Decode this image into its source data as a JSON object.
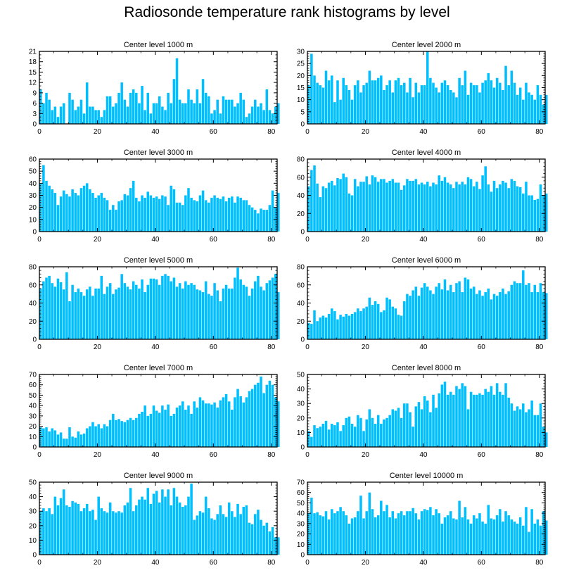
{
  "title": "Radiosonde temperature rank histograms by level",
  "bar_color": "#00BFFF",
  "axis_color": "#000000",
  "chart_data": [
    {
      "type": "bar",
      "title": "Center level 1000 m",
      "xlim": [
        0,
        82
      ],
      "ylim": [
        0,
        21
      ],
      "xticks": [
        0,
        20,
        40,
        60,
        80
      ],
      "yticks": [
        0,
        3,
        6,
        9,
        12,
        15,
        18,
        21
      ],
      "values": [
        10,
        6,
        9,
        7,
        4,
        5,
        2,
        5,
        6,
        0,
        9,
        7,
        4,
        5,
        7,
        3,
        12,
        5,
        5,
        4,
        4,
        2,
        4,
        8,
        8,
        5,
        6,
        9,
        12,
        7,
        5,
        9,
        10,
        9,
        6,
        11,
        4,
        9,
        3,
        6,
        6,
        8,
        5,
        4,
        9,
        6,
        13,
        19,
        7,
        6,
        6,
        10,
        7,
        6,
        10,
        6,
        13,
        9,
        8,
        3,
        4,
        7,
        3,
        8,
        7,
        7,
        7,
        5,
        6,
        9,
        7,
        2,
        3,
        5,
        7,
        5,
        6,
        4,
        10,
        4,
        3,
        5,
        6
      ]
    },
    {
      "type": "bar",
      "title": "Center level 2000 m",
      "xlim": [
        0,
        82
      ],
      "ylim": [
        0,
        30
      ],
      "xticks": [
        0,
        20,
        40,
        60,
        80
      ],
      "yticks": [
        0,
        5,
        10,
        15,
        20,
        25,
        30
      ],
      "values": [
        16,
        29,
        20,
        17,
        16,
        15,
        22,
        18,
        20,
        9,
        18,
        10,
        19,
        16,
        14,
        10,
        16,
        18,
        13,
        16,
        17,
        22,
        18,
        18,
        19,
        20,
        14,
        16,
        18,
        13,
        18,
        19,
        16,
        17,
        13,
        19,
        11,
        17,
        13,
        16,
        16,
        30,
        19,
        17,
        15,
        13,
        17,
        18,
        16,
        14,
        13,
        11,
        19,
        16,
        22,
        12,
        17,
        16,
        16,
        13,
        17,
        18,
        21,
        18,
        15,
        19,
        17,
        14,
        24,
        16,
        22,
        17,
        12,
        15,
        10,
        17,
        13,
        12,
        10,
        16,
        12,
        8,
        12
      ]
    },
    {
      "type": "bar",
      "title": "Center level 3000 m",
      "xlim": [
        0,
        82
      ],
      "ylim": [
        0,
        60
      ],
      "xticks": [
        0,
        20,
        40,
        60,
        80
      ],
      "yticks": [
        0,
        10,
        20,
        30,
        40,
        50,
        60
      ],
      "values": [
        40,
        55,
        42,
        38,
        35,
        32,
        22,
        29,
        34,
        31,
        29,
        35,
        32,
        30,
        36,
        38,
        40,
        35,
        32,
        28,
        30,
        32,
        28,
        26,
        18,
        22,
        18,
        25,
        26,
        31,
        30,
        36,
        42,
        28,
        25,
        30,
        28,
        33,
        30,
        28,
        29,
        27,
        30,
        29,
        22,
        38,
        35,
        24,
        24,
        22,
        30,
        36,
        28,
        26,
        25,
        30,
        34,
        26,
        24,
        28,
        30,
        28,
        27,
        29,
        25,
        28,
        29,
        24,
        29,
        28,
        26,
        26,
        22,
        20,
        18,
        15,
        19,
        18,
        18,
        22,
        34,
        20,
        32
      ]
    },
    {
      "type": "bar",
      "title": "Center level 4000 m",
      "xlim": [
        0,
        82
      ],
      "ylim": [
        0,
        80
      ],
      "xticks": [
        0,
        20,
        40,
        60,
        80
      ],
      "yticks": [
        0,
        20,
        40,
        60,
        80
      ],
      "values": [
        50,
        68,
        73,
        53,
        38,
        50,
        48,
        54,
        56,
        51,
        59,
        58,
        64,
        60,
        42,
        40,
        58,
        50,
        55,
        55,
        61,
        52,
        62,
        60,
        55,
        58,
        58,
        54,
        56,
        58,
        54,
        54,
        46,
        51,
        58,
        56,
        56,
        58,
        52,
        54,
        52,
        55,
        50,
        54,
        52,
        62,
        56,
        60,
        54,
        52,
        48,
        55,
        52,
        55,
        52,
        60,
        58,
        50,
        55,
        47,
        62,
        72,
        52,
        44,
        56,
        48,
        52,
        56,
        54,
        48,
        58,
        56,
        50,
        49,
        42,
        55,
        40,
        40,
        35,
        36,
        52,
        40,
        42
      ]
    },
    {
      "type": "bar",
      "title": "Center level 5000 m",
      "xlim": [
        0,
        82
      ],
      "ylim": [
        0,
        80
      ],
      "xticks": [
        0,
        20,
        40,
        60,
        80
      ],
      "yticks": [
        0,
        20,
        40,
        60,
        80
      ],
      "values": [
        56,
        64,
        68,
        70,
        62,
        58,
        67,
        63,
        55,
        74,
        42,
        60,
        52,
        56,
        52,
        48,
        55,
        58,
        48,
        56,
        56,
        70,
        50,
        58,
        62,
        50,
        55,
        57,
        72,
        62,
        58,
        55,
        64,
        60,
        56,
        66,
        52,
        60,
        67,
        67,
        66,
        60,
        70,
        72,
        70,
        64,
        68,
        58,
        62,
        56,
        64,
        60,
        62,
        60,
        55,
        54,
        52,
        64,
        50,
        48,
        62,
        54,
        42,
        56,
        60,
        56,
        56,
        68,
        79,
        66,
        60,
        58,
        48,
        56,
        64,
        70,
        58,
        54,
        62,
        65,
        68,
        72,
        52
      ]
    },
    {
      "type": "bar",
      "title": "Center level 6000 m",
      "xlim": [
        0,
        82
      ],
      "ylim": [
        0,
        80
      ],
      "xticks": [
        0,
        20,
        40,
        60,
        80
      ],
      "yticks": [
        0,
        20,
        40,
        60,
        80
      ],
      "values": [
        18,
        17,
        32,
        20,
        24,
        26,
        24,
        28,
        34,
        31,
        22,
        27,
        25,
        28,
        26,
        28,
        30,
        34,
        31,
        34,
        36,
        46,
        38,
        42,
        39,
        30,
        32,
        46,
        44,
        36,
        34,
        27,
        26,
        42,
        50,
        48,
        54,
        58,
        48,
        57,
        62,
        58,
        54,
        50,
        58,
        62,
        55,
        66,
        54,
        60,
        52,
        62,
        64,
        52,
        68,
        66,
        56,
        58,
        50,
        54,
        48,
        52,
        56,
        44,
        50,
        48,
        52,
        56,
        50,
        53,
        60,
        64,
        62,
        62,
        76,
        60,
        62,
        52,
        60,
        52,
        62,
        52,
        51
      ]
    },
    {
      "type": "bar",
      "title": "Center level 7000 m",
      "xlim": [
        0,
        82
      ],
      "ylim": [
        0,
        70
      ],
      "xticks": [
        0,
        20,
        40,
        60,
        80
      ],
      "yticks": [
        0,
        10,
        20,
        30,
        40,
        50,
        60,
        70
      ],
      "values": [
        19,
        18,
        19,
        15,
        18,
        16,
        12,
        14,
        8,
        8,
        19,
        10,
        9,
        15,
        12,
        13,
        18,
        20,
        24,
        20,
        22,
        18,
        22,
        20,
        26,
        32,
        26,
        27,
        25,
        24,
        26,
        28,
        26,
        28,
        32,
        34,
        40,
        30,
        32,
        40,
        35,
        33,
        40,
        36,
        41,
        30,
        32,
        38,
        40,
        44,
        36,
        40,
        32,
        44,
        38,
        48,
        45,
        42,
        42,
        41,
        43,
        38,
        45,
        48,
        51,
        44,
        36,
        48,
        56,
        49,
        43,
        48,
        54,
        56,
        60,
        62,
        68,
        52,
        60,
        64,
        60,
        48,
        44
      ]
    },
    {
      "type": "bar",
      "title": "Center level 8000 m",
      "xlim": [
        0,
        82
      ],
      "ylim": [
        0,
        50
      ],
      "xticks": [
        0,
        20,
        40,
        60,
        80
      ],
      "yticks": [
        0,
        10,
        20,
        30,
        40,
        50
      ],
      "values": [
        11,
        7,
        15,
        13,
        14,
        16,
        18,
        12,
        16,
        15,
        17,
        11,
        15,
        20,
        21,
        16,
        14,
        22,
        20,
        11,
        19,
        26,
        20,
        16,
        22,
        16,
        19,
        20,
        22,
        26,
        25,
        27,
        20,
        30,
        30,
        24,
        14,
        28,
        31,
        26,
        35,
        32,
        24,
        36,
        27,
        37,
        43,
        45,
        36,
        38,
        36,
        42,
        40,
        44,
        42,
        26,
        38,
        36,
        36,
        37,
        36,
        40,
        38,
        42,
        36,
        44,
        38,
        36,
        44,
        34,
        30,
        25,
        28,
        26,
        30,
        24,
        26,
        32,
        22,
        22,
        30,
        14,
        10
      ]
    },
    {
      "type": "bar",
      "title": "Center level 9000 m",
      "xlim": [
        0,
        82
      ],
      "ylim": [
        0,
        50
      ],
      "xticks": [
        0,
        20,
        40,
        60,
        80
      ],
      "yticks": [
        0,
        10,
        20,
        30,
        40,
        50
      ],
      "values": [
        30,
        32,
        30,
        32,
        28,
        40,
        34,
        39,
        45,
        34,
        33,
        37,
        36,
        35,
        30,
        32,
        35,
        30,
        31,
        24,
        40,
        32,
        30,
        29,
        36,
        30,
        29,
        30,
        29,
        34,
        36,
        46,
        30,
        34,
        38,
        40,
        38,
        46,
        35,
        42,
        44,
        36,
        45,
        40,
        45,
        34,
        46,
        40,
        36,
        33,
        34,
        40,
        49,
        24,
        27,
        30,
        29,
        40,
        32,
        25,
        24,
        28,
        34,
        28,
        26,
        36,
        30,
        26,
        35,
        28,
        33,
        34,
        22,
        21,
        28,
        31,
        24,
        20,
        22,
        16,
        19,
        12,
        12
      ]
    },
    {
      "type": "bar",
      "title": "Center level 10000 m",
      "xlim": [
        0,
        82
      ],
      "ylim": [
        0,
        70
      ],
      "xticks": [
        0,
        20,
        40,
        60,
        80
      ],
      "yticks": [
        0,
        10,
        20,
        30,
        40,
        50,
        60,
        70
      ],
      "values": [
        40,
        55,
        40,
        41,
        38,
        37,
        42,
        34,
        44,
        40,
        42,
        46,
        42,
        38,
        30,
        35,
        36,
        42,
        57,
        35,
        42,
        60,
        44,
        36,
        38,
        52,
        42,
        48,
        36,
        42,
        35,
        40,
        42,
        38,
        42,
        42,
        45,
        40,
        34,
        42,
        44,
        43,
        46,
        38,
        44,
        40,
        30,
        36,
        38,
        42,
        35,
        34,
        52,
        36,
        46,
        34,
        30,
        38,
        35,
        40,
        32,
        30,
        48,
        35,
        34,
        38,
        44,
        32,
        42,
        38,
        34,
        32,
        30,
        36,
        28,
        46,
        22,
        44,
        30,
        34,
        28,
        42,
        33
      ]
    }
  ]
}
